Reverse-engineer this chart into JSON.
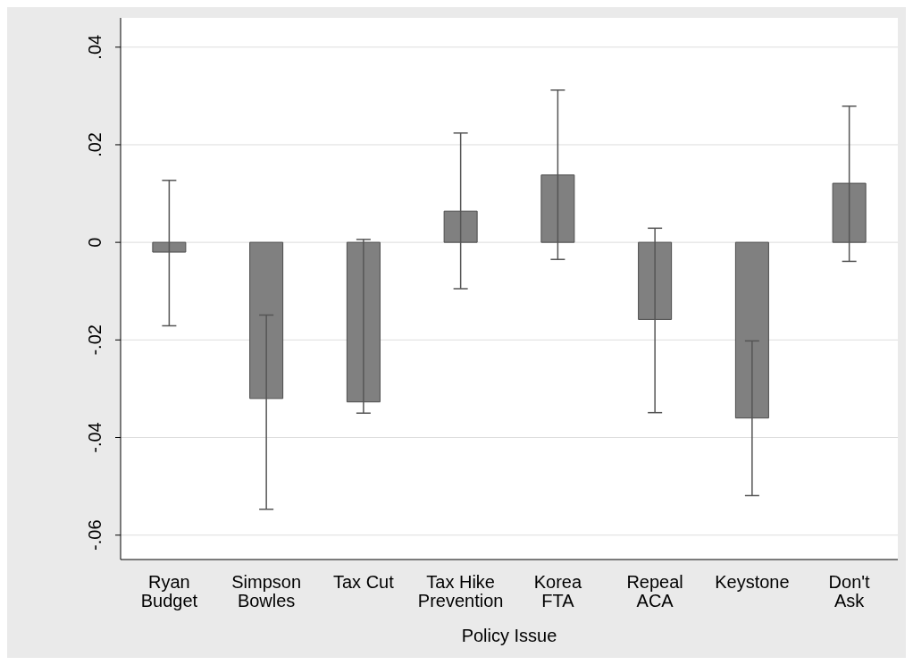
{
  "chart_data": {
    "type": "bar",
    "xlabel": "Policy Issue",
    "categories": [
      "Ryan\nBudget",
      "Simpson\nBowles",
      "Tax Cut",
      "Tax Hike\nPrevention",
      "Korea\nFTA",
      "Repeal\nACA",
      "Keystone",
      "Don't\nAsk"
    ],
    "values": [
      -0.002,
      -0.032,
      -0.0327,
      0.0064,
      0.0138,
      -0.0158,
      -0.036,
      0.0121
    ],
    "errors": [
      [
        -0.0171,
        0.0127
      ],
      [
        -0.0149,
        -0.0547
      ],
      [
        -0.035,
        0.0006
      ],
      [
        -0.0095,
        0.0224
      ],
      [
        -0.0035,
        0.0312
      ],
      [
        -0.0349,
        0.0029
      ],
      [
        -0.0519,
        -0.0202
      ],
      [
        -0.0039,
        0.0279
      ]
    ],
    "color": "#808080",
    "ylim": [
      -0.065,
      0.046
    ],
    "yticks": [
      {
        "value": -0.06,
        "label": "-.06"
      },
      {
        "value": -0.04,
        "label": "-.04"
      },
      {
        "value": -0.02,
        "label": "-.02"
      },
      {
        "value": 0,
        "label": "0"
      },
      {
        "value": 0.02,
        "label": ".02"
      },
      {
        "value": 0.04,
        "label": ".04"
      }
    ],
    "grid": "y"
  }
}
